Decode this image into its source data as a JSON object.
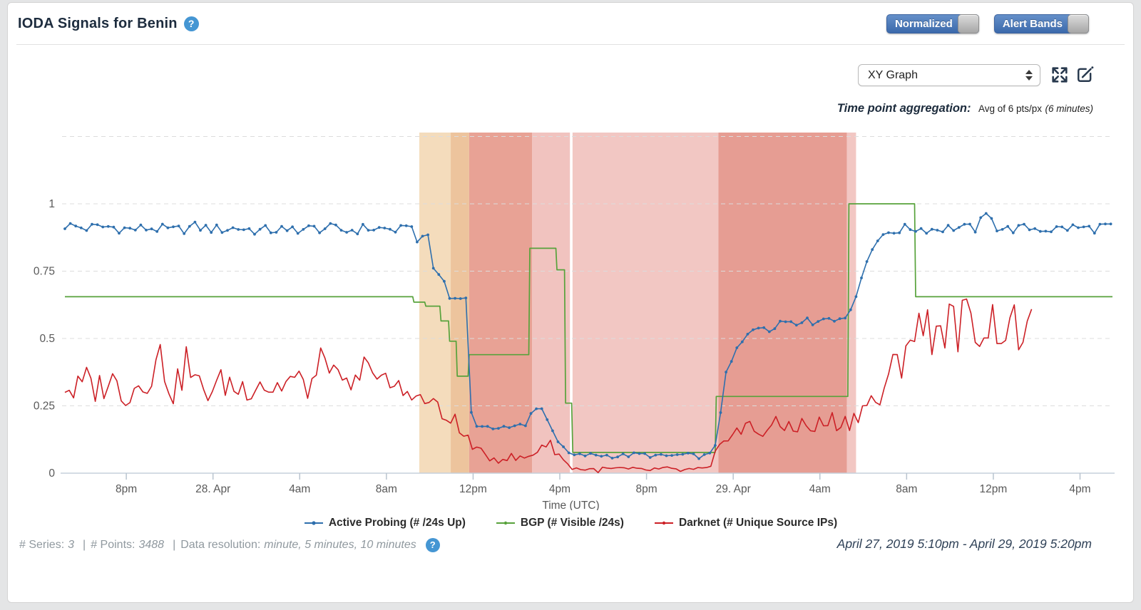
{
  "header": {
    "title": "IODA Signals for Benin",
    "help_glyph": "?",
    "toggles": [
      {
        "label": "Normalized",
        "state": "on"
      },
      {
        "label": "Alert Bands",
        "state": "on"
      }
    ]
  },
  "controls": {
    "graph_type_selected": "XY Graph",
    "aggregation_label": "Time point aggregation:",
    "aggregation_value": "Avg of 6 pts/px",
    "aggregation_paren": "(6 minutes)"
  },
  "footer": {
    "series_label": "# Series:",
    "series_value": "3",
    "points_label": "# Points:",
    "points_value": "3488",
    "resolution_label": "Data resolution:",
    "resolution_value": "minute, 5 minutes, 10 minutes",
    "separator": "|",
    "date_range": "April 27, 2019 5:10pm - April 29, 2019 5:20pm"
  },
  "chart_data": {
    "type": "line",
    "title": "",
    "xlabel": "Time (UTC)",
    "x_unit": "hours since 2019-04-27 17:10 UTC",
    "x_range": [
      0,
      48.33
    ],
    "y_range": [
      0,
      1
    ],
    "grid": "dashed horizontal",
    "legend_position": "bottom",
    "y_ticks": [
      0,
      0.25,
      0.5,
      0.75,
      1
    ],
    "gridline_values": [
      0.25,
      0.5,
      0.75,
      1,
      1.25
    ],
    "x_ticks": [
      {
        "t": 2.833,
        "label": "8pm"
      },
      {
        "t": 6.833,
        "label": "28. Apr"
      },
      {
        "t": 10.833,
        "label": "4am"
      },
      {
        "t": 14.833,
        "label": "8am"
      },
      {
        "t": 18.833,
        "label": "12pm"
      },
      {
        "t": 22.833,
        "label": "4pm"
      },
      {
        "t": 26.833,
        "label": "8pm"
      },
      {
        "t": 30.833,
        "label": "29. Apr"
      },
      {
        "t": 34.833,
        "label": "4am"
      },
      {
        "t": 38.833,
        "label": "8am"
      },
      {
        "t": 42.833,
        "label": "12pm"
      },
      {
        "t": 46.833,
        "label": "4pm"
      }
    ],
    "alert_bands": [
      {
        "t0": 16.35,
        "t1": 17.8,
        "color": "#f4dcbc"
      },
      {
        "t0": 17.8,
        "t1": 18.65,
        "color": "#edc49d"
      },
      {
        "t0": 18.65,
        "t1": 21.55,
        "color": "#e8a295"
      },
      {
        "t0": 21.55,
        "t1": 23.3,
        "color": "#f1c3bf"
      },
      {
        "t0": 23.42,
        "t1": 30.15,
        "color": "#f2c7c3"
      },
      {
        "t0": 30.15,
        "t1": 36.08,
        "color": "#e69d93"
      },
      {
        "t0": 36.08,
        "t1": 36.5,
        "color": "#f2c7c3"
      }
    ],
    "series": [
      {
        "name": "Active Probing (# /24s Up)",
        "color": "#2e6fad",
        "marker": "dot",
        "sample_step_h": 0.25,
        "anchors": [
          [
            0,
            0.92
          ],
          [
            1,
            0.91
          ],
          [
            2,
            0.915
          ],
          [
            3,
            0.905
          ],
          [
            4,
            0.91
          ],
          [
            5,
            0.9
          ],
          [
            6,
            0.915
          ],
          [
            7,
            0.905
          ],
          [
            8,
            0.91
          ],
          [
            9,
            0.9
          ],
          [
            10,
            0.905
          ],
          [
            10.1,
            0.85
          ],
          [
            10.35,
            0.91
          ],
          [
            11,
            0.905
          ],
          [
            12,
            0.91
          ],
          [
            13,
            0.9
          ],
          [
            14,
            0.91
          ],
          [
            15,
            0.905
          ],
          [
            15.8,
            0.9
          ],
          [
            16.05,
            0.93
          ],
          [
            16.2,
            0.85
          ],
          [
            16.35,
            0.86
          ],
          [
            16.5,
            0.89
          ],
          [
            16.65,
            0.88
          ],
          [
            16.8,
            0.87
          ],
          [
            16.95,
            0.8
          ],
          [
            17.05,
            0.72
          ],
          [
            17.15,
            0.6
          ],
          [
            17.25,
            0.74
          ],
          [
            17.35,
            0.69
          ],
          [
            17.5,
            0.71
          ],
          [
            17.65,
            0.67
          ],
          [
            17.8,
            0.64
          ],
          [
            17.95,
            0.655
          ],
          [
            18.1,
            0.64
          ],
          [
            18.25,
            0.66
          ],
          [
            18.4,
            0.62
          ],
          [
            18.5,
            0.645
          ],
          [
            18.6,
            0.63
          ],
          [
            18.66,
            0.42
          ],
          [
            18.72,
            0.24
          ],
          [
            18.85,
            0.19
          ],
          [
            19.1,
            0.17
          ],
          [
            19.6,
            0.165
          ],
          [
            20.1,
            0.175
          ],
          [
            20.6,
            0.17
          ],
          [
            21.1,
            0.18
          ],
          [
            21.35,
            0.17
          ],
          [
            21.5,
            0.22
          ],
          [
            21.65,
            0.265
          ],
          [
            21.8,
            0.235
          ],
          [
            21.95,
            0.25
          ],
          [
            22.15,
            0.21
          ],
          [
            22.35,
            0.185
          ],
          [
            22.55,
            0.155
          ],
          [
            22.75,
            0.12
          ],
          [
            22.95,
            0.095
          ],
          [
            23.2,
            0.075
          ],
          [
            23.5,
            0.065
          ],
          [
            24.5,
            0.068
          ],
          [
            25.5,
            0.063
          ],
          [
            26.5,
            0.07
          ],
          [
            27.5,
            0.062
          ],
          [
            28.5,
            0.068
          ],
          [
            29.3,
            0.062
          ],
          [
            29.75,
            0.065
          ],
          [
            29.95,
            0.09
          ],
          [
            30.15,
            0.16
          ],
          [
            30.3,
            0.27
          ],
          [
            30.45,
            0.35
          ],
          [
            30.6,
            0.39
          ],
          [
            30.8,
            0.42
          ],
          [
            31,
            0.46
          ],
          [
            31.3,
            0.49
          ],
          [
            31.6,
            0.52
          ],
          [
            31.9,
            0.54
          ],
          [
            32.2,
            0.55
          ],
          [
            32.6,
            0.53
          ],
          [
            33,
            0.555
          ],
          [
            33.4,
            0.57
          ],
          [
            33.8,
            0.56
          ],
          [
            34.2,
            0.58
          ],
          [
            34.5,
            0.55
          ],
          [
            34.8,
            0.57
          ],
          [
            35.1,
            0.58
          ],
          [
            35.4,
            0.59
          ],
          [
            35.65,
            0.55
          ],
          [
            35.85,
            0.575
          ],
          [
            36.05,
            0.59
          ],
          [
            36.25,
            0.61
          ],
          [
            36.45,
            0.64
          ],
          [
            36.65,
            0.7
          ],
          [
            36.85,
            0.75
          ],
          [
            37.05,
            0.8
          ],
          [
            37.25,
            0.835
          ],
          [
            37.45,
            0.86
          ],
          [
            37.65,
            0.875
          ],
          [
            37.9,
            0.89
          ],
          [
            38.2,
            0.9
          ],
          [
            39,
            0.91
          ],
          [
            40,
            0.905
          ],
          [
            41,
            0.912
          ],
          [
            42,
            0.908
          ],
          [
            42.7,
            0.975
          ],
          [
            42.9,
            0.912
          ],
          [
            43.5,
            0.905
          ],
          [
            44.5,
            0.91
          ],
          [
            45.5,
            0.905
          ],
          [
            46.5,
            0.912
          ],
          [
            47.5,
            0.908
          ],
          [
            48.17,
            0.925
          ]
        ],
        "noise": [
          [
            0,
            15.8,
            0.02
          ],
          [
            15.8,
            18.6,
            0.012
          ],
          [
            18.6,
            23.2,
            0.008
          ],
          [
            23.2,
            29.75,
            0.009
          ],
          [
            29.75,
            36.25,
            0.012
          ],
          [
            36.25,
            38.2,
            0.006
          ],
          [
            38.2,
            48.17,
            0.018
          ]
        ]
      },
      {
        "name": "BGP (# Visible /24s)",
        "color": "#57a23b",
        "marker": "none",
        "step": true,
        "anchors": [
          [
            0,
            0.655
          ],
          [
            16.05,
            0.655
          ],
          [
            16.1,
            0.635
          ],
          [
            16.6,
            0.635
          ],
          [
            16.65,
            0.62
          ],
          [
            17.3,
            0.62
          ],
          [
            17.35,
            0.565
          ],
          [
            17.7,
            0.565
          ],
          [
            17.75,
            0.49
          ],
          [
            18.05,
            0.49
          ],
          [
            18.1,
            0.36
          ],
          [
            18.6,
            0.36
          ],
          [
            18.65,
            0.44
          ],
          [
            21.4,
            0.44
          ],
          [
            21.45,
            0.835
          ],
          [
            22.65,
            0.835
          ],
          [
            22.7,
            0.755
          ],
          [
            23.05,
            0.755
          ],
          [
            23.1,
            0.26
          ],
          [
            23.38,
            0.26
          ],
          [
            23.43,
            0.077
          ],
          [
            30.0,
            0.077
          ],
          [
            30.05,
            0.285
          ],
          [
            36.12,
            0.285
          ],
          [
            36.17,
            1.0
          ],
          [
            39.2,
            1.0
          ],
          [
            39.25,
            0.655
          ],
          [
            48.33,
            0.655
          ]
        ]
      },
      {
        "name": "Darknet (# Unique Source IPs)",
        "color": "#cc2026",
        "marker": "none",
        "sample_step_h": 0.2,
        "anchors": [
          [
            0,
            0.33
          ],
          [
            0.5,
            0.3
          ],
          [
            1,
            0.34
          ],
          [
            1.5,
            0.31
          ],
          [
            2,
            0.35
          ],
          [
            2.5,
            0.32
          ],
          [
            3,
            0.3
          ],
          [
            3.5,
            0.34
          ],
          [
            4,
            0.37
          ],
          [
            4.4,
            0.44
          ],
          [
            4.7,
            0.35
          ],
          [
            5,
            0.31
          ],
          [
            5.3,
            0.33
          ],
          [
            5.6,
            0.43
          ],
          [
            5.9,
            0.34
          ],
          [
            6.3,
            0.31
          ],
          [
            7,
            0.32
          ],
          [
            7.5,
            0.34
          ],
          [
            8,
            0.31
          ],
          [
            8.5,
            0.33
          ],
          [
            9,
            0.35
          ],
          [
            9.5,
            0.31
          ],
          [
            10,
            0.33
          ],
          [
            10.5,
            0.35
          ],
          [
            11,
            0.32
          ],
          [
            11.5,
            0.34
          ],
          [
            11.9,
            0.42
          ],
          [
            12.1,
            0.47
          ],
          [
            12.4,
            0.35
          ],
          [
            12.8,
            0.3
          ],
          [
            13.2,
            0.33
          ],
          [
            13.6,
            0.31
          ],
          [
            14,
            0.47
          ],
          [
            14.3,
            0.36
          ],
          [
            14.7,
            0.31
          ],
          [
            15,
            0.33
          ],
          [
            15.5,
            0.3
          ],
          [
            16,
            0.31
          ],
          [
            16.3,
            0.28
          ],
          [
            16.6,
            0.25
          ],
          [
            16.9,
            0.29
          ],
          [
            17.2,
            0.23
          ],
          [
            17.5,
            0.19
          ],
          [
            17.8,
            0.22
          ],
          [
            18.1,
            0.17
          ],
          [
            18.4,
            0.13
          ],
          [
            18.7,
            0.12
          ],
          [
            19,
            0.08
          ],
          [
            19.4,
            0.065
          ],
          [
            19.9,
            0.055
          ],
          [
            20.4,
            0.06
          ],
          [
            20.9,
            0.052
          ],
          [
            21.4,
            0.06
          ],
          [
            21.7,
            0.08
          ],
          [
            22,
            0.105
          ],
          [
            22.3,
            0.11
          ],
          [
            22.6,
            0.09
          ],
          [
            22.9,
            0.06
          ],
          [
            23.2,
            0.03
          ],
          [
            23.5,
            0.018
          ],
          [
            24.5,
            0.012
          ],
          [
            25.5,
            0.016
          ],
          [
            26.5,
            0.01
          ],
          [
            27.5,
            0.015
          ],
          [
            28.5,
            0.01
          ],
          [
            29.5,
            0.013
          ],
          [
            29.9,
            0.02
          ],
          [
            30.15,
            0.07
          ],
          [
            30.35,
            0.13
          ],
          [
            30.6,
            0.16
          ],
          [
            31,
            0.15
          ],
          [
            31.5,
            0.17
          ],
          [
            32,
            0.155
          ],
          [
            32.5,
            0.175
          ],
          [
            33,
            0.165
          ],
          [
            33.5,
            0.185
          ],
          [
            34,
            0.175
          ],
          [
            34.5,
            0.165
          ],
          [
            35,
            0.185
          ],
          [
            35.5,
            0.195
          ],
          [
            36.1,
            0.185
          ],
          [
            36.4,
            0.21
          ],
          [
            36.7,
            0.235
          ],
          [
            37,
            0.255
          ],
          [
            37.3,
            0.275
          ],
          [
            37.6,
            0.265
          ],
          [
            37.9,
            0.32
          ],
          [
            38.2,
            0.37
          ],
          [
            38.5,
            0.43
          ],
          [
            38.8,
            0.49
          ],
          [
            39.1,
            0.54
          ],
          [
            39.4,
            0.51
          ],
          [
            39.8,
            0.555
          ],
          [
            40.2,
            0.53
          ],
          [
            40.6,
            0.56
          ],
          [
            41,
            0.54
          ],
          [
            41.4,
            0.565
          ],
          [
            41.8,
            0.545
          ],
          [
            42.2,
            0.56
          ],
          [
            42.6,
            0.54
          ],
          [
            43,
            0.565
          ],
          [
            43.4,
            0.545
          ],
          [
            43.8,
            0.52
          ],
          [
            44.2,
            0.55
          ],
          [
            44.65,
            0.5
          ]
        ],
        "noise": [
          [
            0,
            16,
            0.065
          ],
          [
            16,
            18.7,
            0.04
          ],
          [
            18.7,
            21.6,
            0.02
          ],
          [
            21.6,
            23.1,
            0.022
          ],
          [
            23.1,
            29.9,
            0.011
          ],
          [
            29.9,
            36.2,
            0.042
          ],
          [
            36.2,
            38.2,
            0.04
          ],
          [
            38.2,
            44.65,
            0.105
          ]
        ]
      }
    ]
  }
}
